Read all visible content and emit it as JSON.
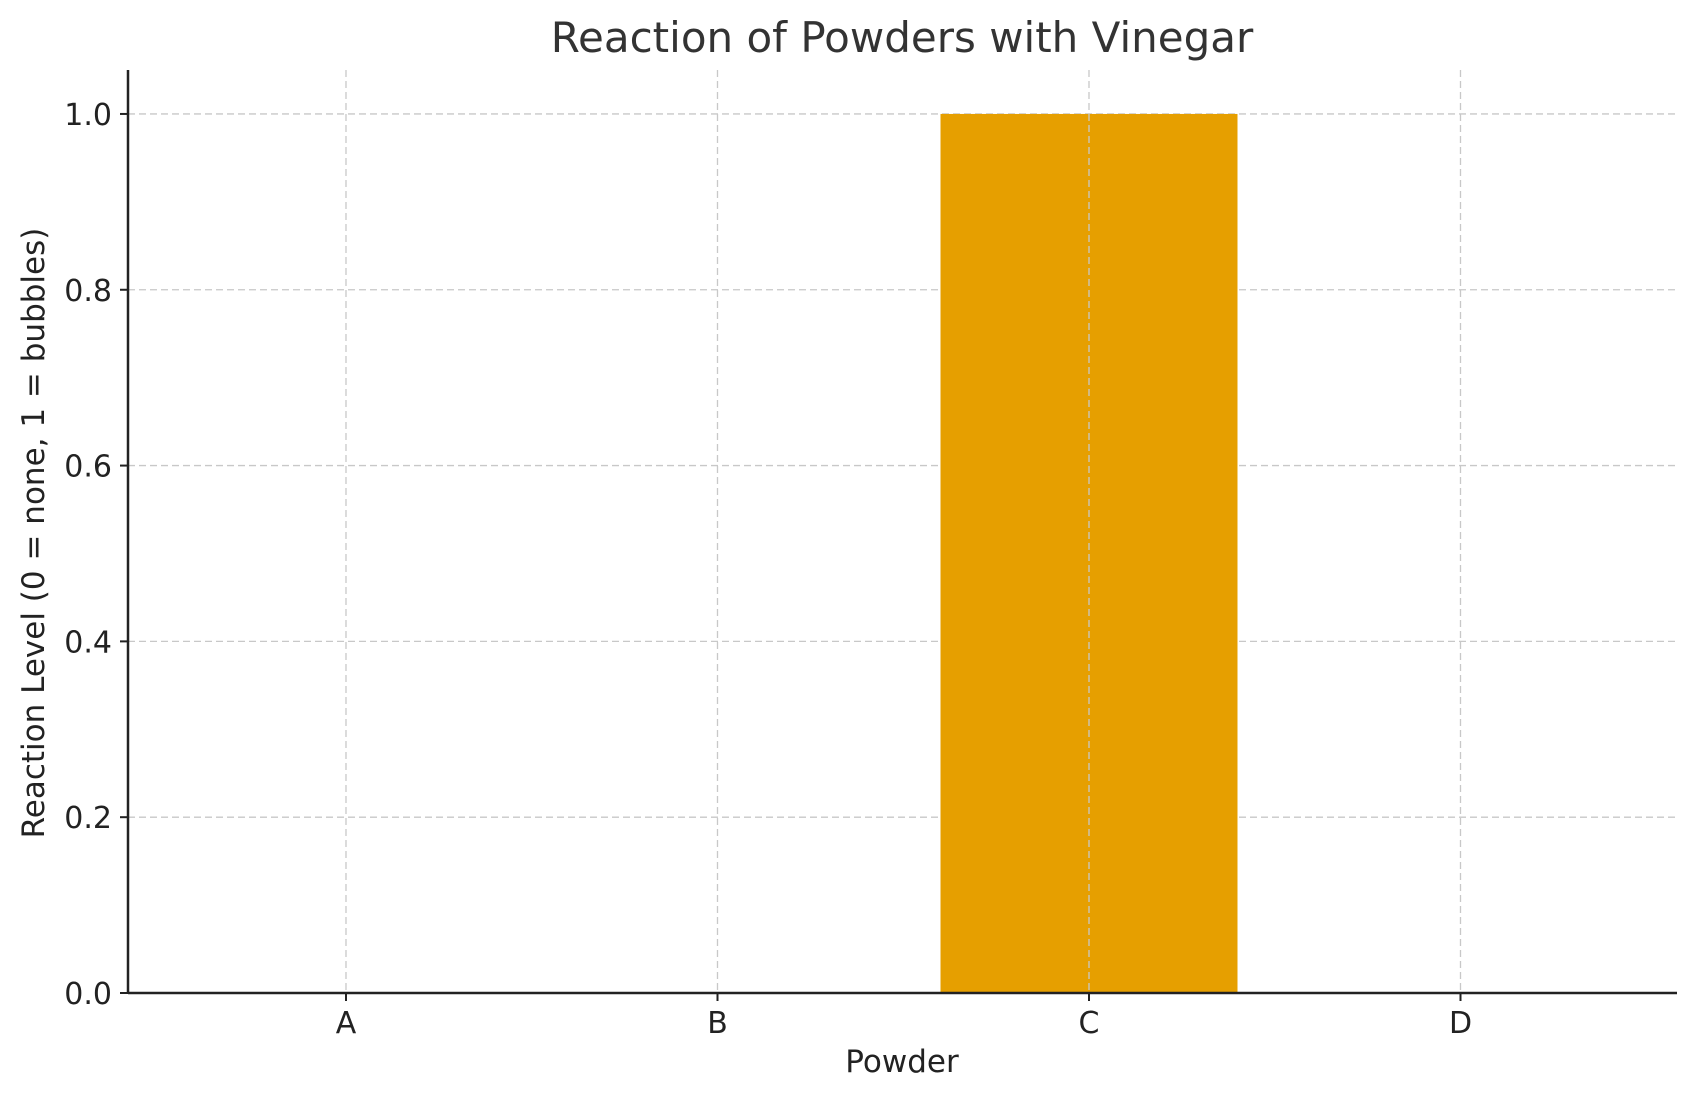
{
  "chart_data": {
    "type": "bar",
    "title": "Reaction of Powders with Vinegar",
    "xlabel": "Powder",
    "ylabel": "Reaction Level (0 = none, 1 = bubbles)",
    "categories": [
      "A",
      "B",
      "C",
      "D"
    ],
    "values": [
      0,
      0,
      1,
      0
    ],
    "ylim": [
      0,
      1.05
    ],
    "yticks": [
      "0.0",
      "0.2",
      "0.4",
      "0.6",
      "0.8",
      "1.0"
    ],
    "grid": true,
    "legend": "none",
    "colors": {
      "bar": "#E69F00"
    }
  }
}
